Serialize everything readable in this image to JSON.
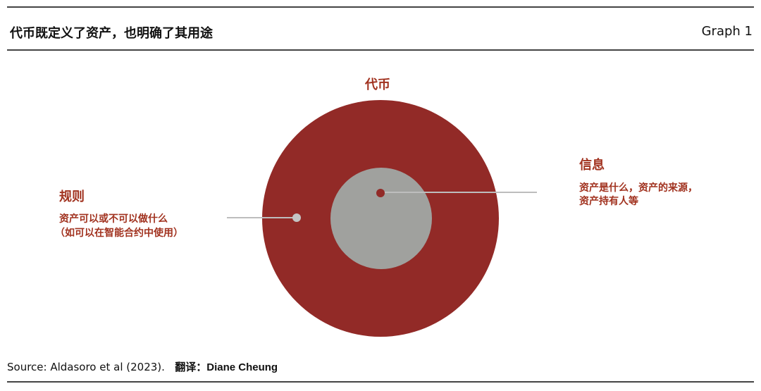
{
  "header": {
    "title": "代币既定义了资产，也明确了其用途",
    "graph_label": "Graph 1"
  },
  "diagram": {
    "outer_label": "代币",
    "left": {
      "title": "规则",
      "lines": [
        "资产可以或不可以做什么",
        "（如可以在智能合约中使用）"
      ]
    },
    "right": {
      "title": "信息",
      "lines": [
        "资产是什么，资产的来源，",
        "资产持有人等"
      ]
    },
    "colors": {
      "outer": "#922a27",
      "inner": "#a0a19e",
      "text": "#a1321f",
      "connector": "#bdbdbd"
    }
  },
  "footer": {
    "source": "Source: Aldasoro et al (2023).",
    "translator_label": "翻译：",
    "translator": "Diane Cheung"
  }
}
